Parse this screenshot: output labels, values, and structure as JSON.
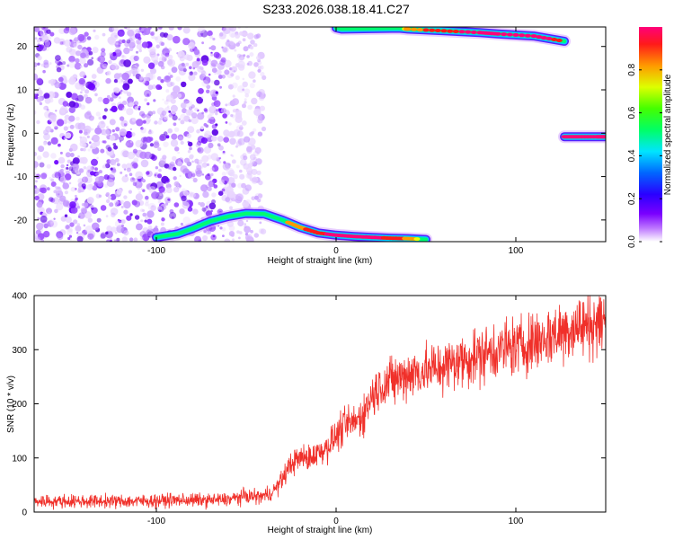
{
  "title": "S233.2026.038.18.41.C27",
  "chart_data": [
    {
      "type": "heatmap",
      "title": "S233.2026.038.18.41.C27",
      "xlabel": "Height of straight line (km)",
      "ylabel": "Frequency (Hz)",
      "xlim": [
        -168,
        150
      ],
      "ylim": [
        -25,
        24.5
      ],
      "xticks": [
        -100,
        0,
        100
      ],
      "yticks": [
        -20,
        -10,
        0,
        10,
        20
      ],
      "grid": false,
      "colorbar": {
        "label": "Normalized spectral amplitude",
        "range": [
          0,
          1
        ],
        "ticks": [
          0.0,
          0.2,
          0.4,
          0.6,
          0.8
        ],
        "colormap": [
          "#ffffff",
          "#9b30ff",
          "#3c00ff",
          "#0055ff",
          "#00e5ff",
          "#00ff40",
          "#eaff00",
          "#ff9900",
          "#ff1a1a",
          "#ff007a"
        ]
      },
      "features": [
        {
          "name": "lower-ridge",
          "x": [
            -100,
            -88,
            -80,
            -70,
            -60,
            -50,
            -40,
            -30,
            -20,
            -10,
            0,
            10,
            20,
            30,
            40,
            50
          ],
          "y": [
            -24,
            -23.2,
            -22,
            -20.3,
            -19.2,
            -18.5,
            -18.6,
            -20,
            -21.7,
            -23,
            -23.5,
            -23.8,
            -24,
            -24.2,
            -24.3,
            -24.5
          ],
          "amplitude": [
            0.35,
            0.4,
            0.45,
            0.5,
            0.55,
            0.55,
            0.55,
            0.65,
            0.8,
            0.9,
            0.95,
            0.95,
            0.95,
            0.9,
            0.8,
            0.6
          ]
        },
        {
          "name": "upper-ridge",
          "x": [
            0,
            3,
            35,
            40,
            60,
            80,
            90,
            110,
            127
          ],
          "y": [
            24.3,
            24.0,
            24.2,
            24.0,
            23.6,
            23.2,
            22.9,
            22.4,
            21.2
          ],
          "amplitude": [
            0.6,
            0.6,
            0.6,
            0.75,
            0.9,
            0.95,
            0.95,
            0.95,
            0.9
          ]
        },
        {
          "name": "zero-line",
          "x": [
            127,
            135,
            145,
            150
          ],
          "y": [
            -0.8,
            -0.8,
            -0.8,
            -0.8
          ],
          "amplitude": [
            0.95,
            0.95,
            0.95,
            0.95
          ]
        }
      ]
    },
    {
      "type": "line",
      "xlabel": "Height of straight line (km)",
      "ylabel": "SNR (10 * v/v)",
      "xlim": [
        -168,
        150
      ],
      "ylim": [
        0,
        400
      ],
      "xticks": [
        -100,
        0,
        100
      ],
      "yticks": [
        0,
        100,
        200,
        300,
        400
      ],
      "grid": false,
      "color": "#f0302a",
      "x": [
        -168,
        -150,
        -130,
        -110,
        -90,
        -70,
        -60,
        -50,
        -45,
        -40,
        -35,
        -30,
        -25,
        -20,
        -15,
        -10,
        -5,
        0,
        5,
        10,
        15,
        20,
        25,
        30,
        40,
        50,
        60,
        70,
        80,
        90,
        100,
        110,
        120,
        130,
        140,
        150
      ],
      "y": [
        20,
        20,
        20,
        20,
        22,
        22,
        23,
        30,
        28,
        30,
        38,
        60,
        90,
        100,
        100,
        110,
        120,
        140,
        160,
        165,
        180,
        215,
        235,
        240,
        255,
        262,
        270,
        280,
        290,
        300,
        305,
        315,
        325,
        340,
        345,
        355
      ]
    }
  ]
}
